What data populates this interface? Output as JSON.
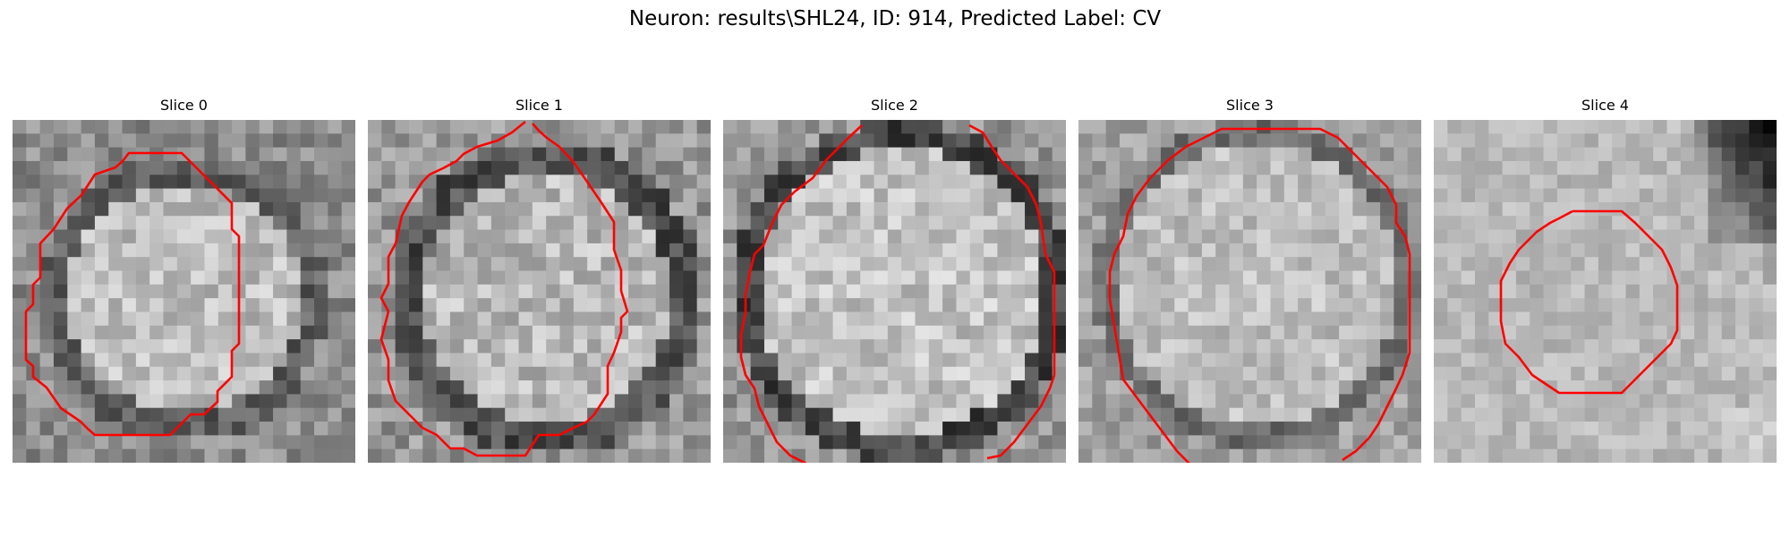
{
  "figure": {
    "title": "Neuron: results\\SHL24, ID: 914, Predicted Label: CV"
  },
  "slices": [
    {
      "title": "Slice 0"
    },
    {
      "title": "Slice 1"
    },
    {
      "title": "Slice 2"
    },
    {
      "title": "Slice 3"
    },
    {
      "title": "Slice 4"
    }
  ],
  "colors": {
    "contour": "#ff0000",
    "background": "#ffffff"
  }
}
